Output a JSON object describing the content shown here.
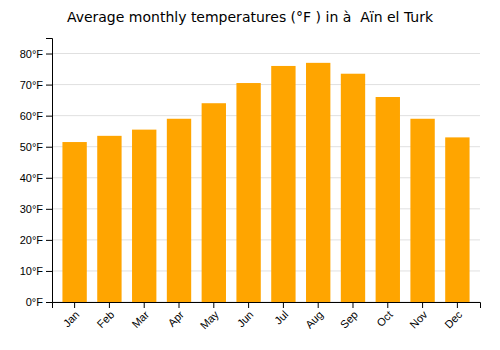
{
  "chart_data": {
    "type": "bar",
    "title": "Average monthly temperatures (°F ) in à  Aïn el Turk",
    "categories": [
      "Jan",
      "Feb",
      "Mar",
      "Apr",
      "May",
      "Jun",
      "Jul",
      "Aug",
      "Sep",
      "Oct",
      "Nov",
      "Dec"
    ],
    "values": [
      51.5,
      53.5,
      55.5,
      59,
      64,
      70.5,
      76,
      77,
      73.5,
      66,
      59,
      53
    ],
    "color": "#FFA500",
    "ylim": [
      0,
      85
    ],
    "yticks": [
      {
        "value": 0,
        "label": "0°F"
      },
      {
        "value": 10,
        "label": "10°F"
      },
      {
        "value": 20,
        "label": "20°F"
      },
      {
        "value": 30,
        "label": "30°F"
      },
      {
        "value": 40,
        "label": "40°F"
      },
      {
        "value": 50,
        "label": "50°F"
      },
      {
        "value": 60,
        "label": "60°F"
      },
      {
        "value": 70,
        "label": "70°F"
      },
      {
        "value": 80,
        "label": "80°F"
      }
    ],
    "grid": true
  }
}
